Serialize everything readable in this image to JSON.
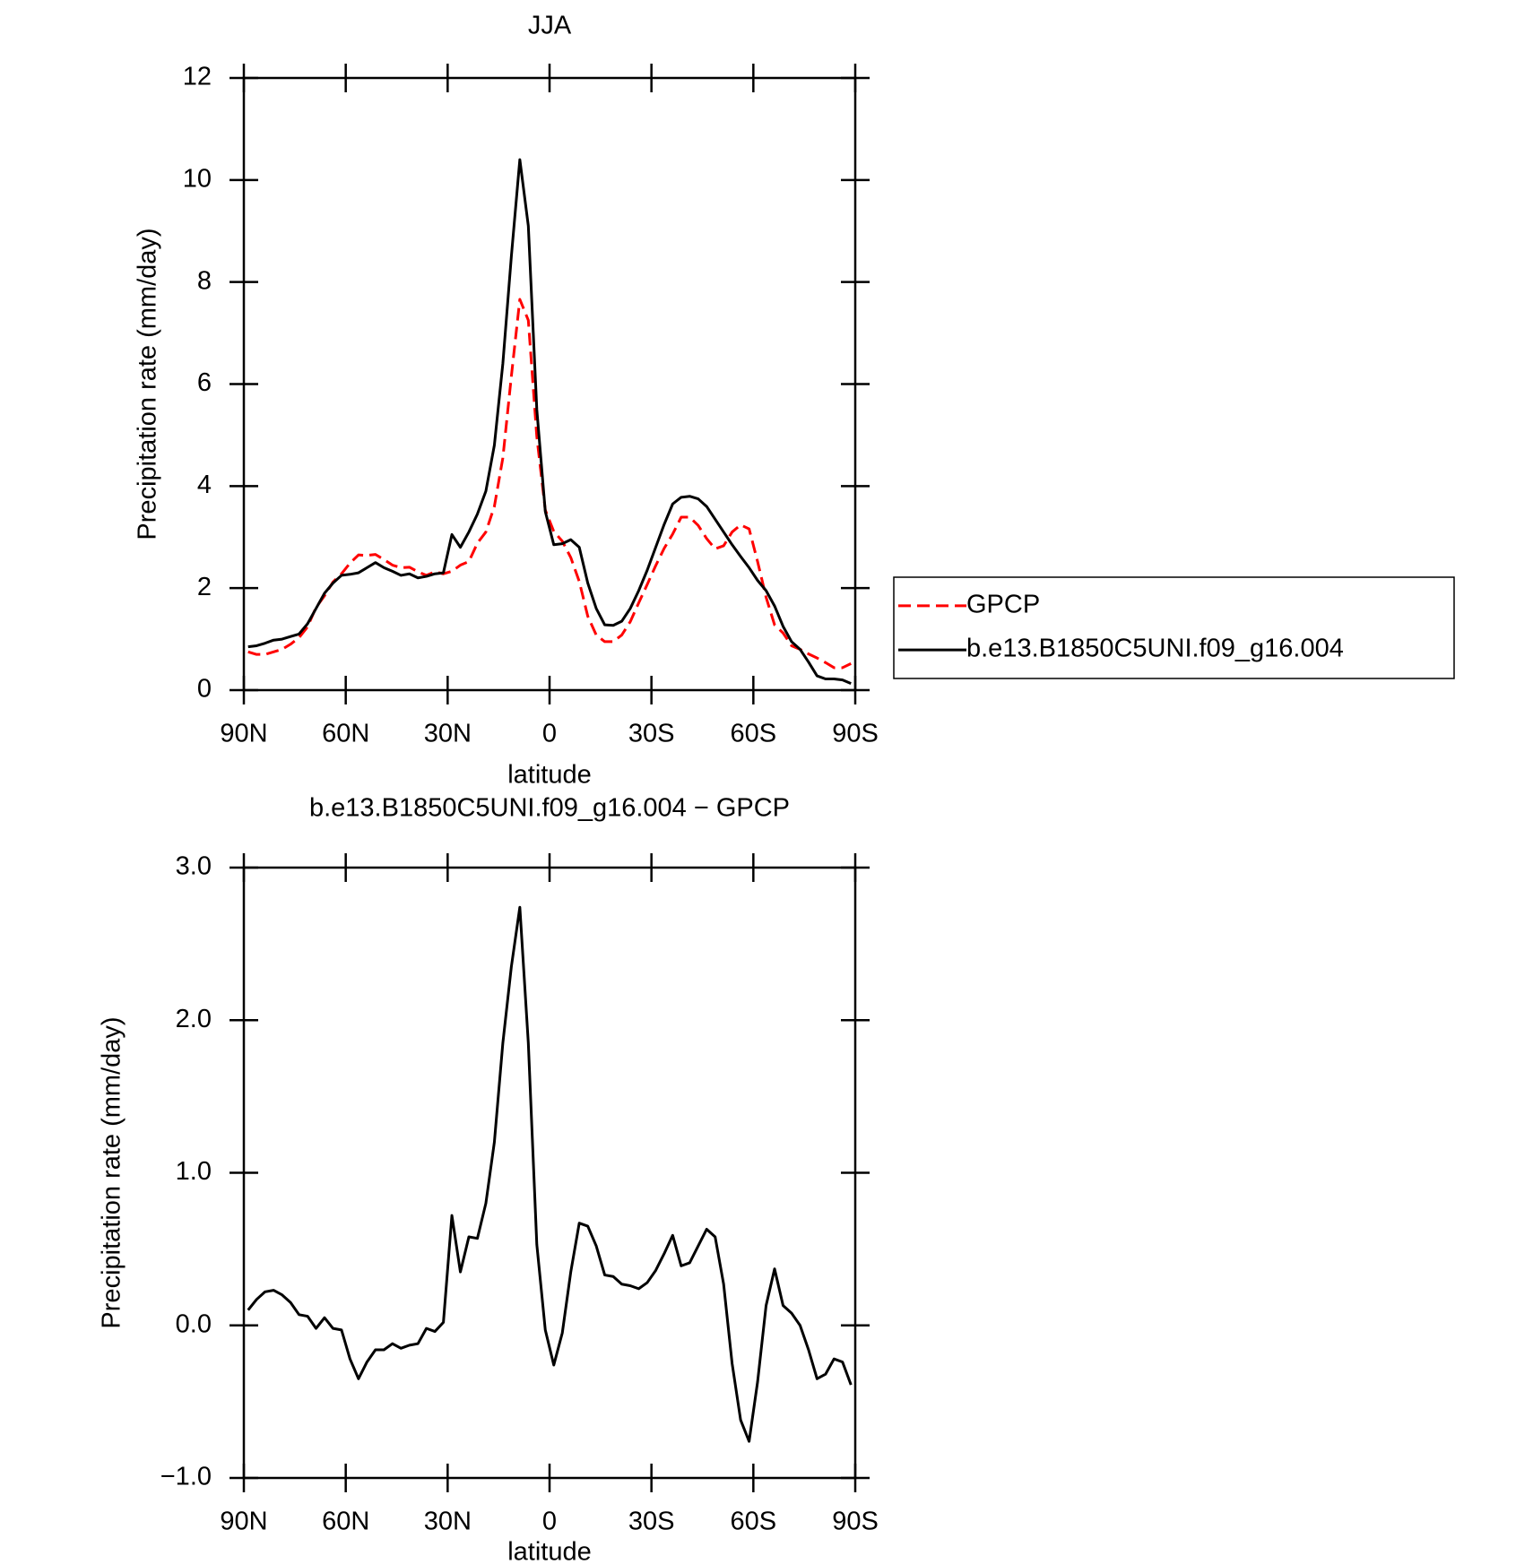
{
  "chart_data": [
    {
      "type": "line",
      "title": "JJA",
      "xlabel": "latitude",
      "ylabel": "Precipitation rate (mm/day)",
      "x": [
        88.75,
        86.25,
        83.75,
        81.25,
        78.75,
        76.25,
        73.75,
        71.25,
        68.75,
        66.25,
        63.75,
        61.25,
        58.75,
        56.25,
        53.75,
        51.25,
        48.75,
        46.25,
        43.75,
        41.25,
        38.75,
        36.25,
        33.75,
        31.25,
        28.75,
        26.25,
        23.75,
        21.25,
        18.75,
        16.25,
        13.75,
        11.25,
        8.75,
        6.25,
        3.75,
        1.25,
        -1.25,
        -3.75,
        -6.25,
        -8.75,
        -11.25,
        -13.75,
        -16.25,
        -18.75,
        -21.25,
        -23.75,
        -26.25,
        -28.75,
        -31.25,
        -33.75,
        -36.25,
        -38.75,
        -41.25,
        -43.75,
        -46.25,
        -48.75,
        -51.25,
        -53.75,
        -56.25,
        -58.75,
        -61.25,
        -63.75,
        -66.25,
        -68.75,
        -71.25,
        -73.75,
        -76.25,
        -78.75,
        -81.25,
        -83.75,
        -86.25,
        -88.75
      ],
      "series": [
        {
          "name": "GPCP",
          "color": "#ff0000",
          "line_style": "dashed",
          "values": [
            0.75,
            0.7,
            0.7,
            0.75,
            0.8,
            0.9,
            1.03,
            1.24,
            1.62,
            1.85,
            2.12,
            2.28,
            2.49,
            2.65,
            2.64,
            2.66,
            2.56,
            2.45,
            2.4,
            2.41,
            2.32,
            2.25,
            2.32,
            2.28,
            2.33,
            2.45,
            2.52,
            2.88,
            3.1,
            3.6,
            4.55,
            6.15,
            7.66,
            7.25,
            4.97,
            3.53,
            3.11,
            2.92,
            2.6,
            2.13,
            1.45,
            1.08,
            0.95,
            0.95,
            1.08,
            1.34,
            1.71,
            2.07,
            2.44,
            2.78,
            3.06,
            3.39,
            3.39,
            3.23,
            2.97,
            2.77,
            2.83,
            3.1,
            3.24,
            3.16,
            2.52,
            1.82,
            1.28,
            1.12,
            0.87,
            0.8,
            0.71,
            0.63,
            0.54,
            0.44,
            0.44,
            0.52
          ]
        },
        {
          "name": "b.e13.B1850C5UNI.f09_g16.004",
          "color": "#000000",
          "line_style": "solid",
          "values": [
            0.85,
            0.87,
            0.92,
            0.98,
            1.0,
            1.05,
            1.1,
            1.3,
            1.6,
            1.9,
            2.1,
            2.25,
            2.27,
            2.3,
            2.4,
            2.5,
            2.4,
            2.33,
            2.25,
            2.28,
            2.2,
            2.23,
            2.28,
            2.3,
            3.05,
            2.8,
            3.1,
            3.45,
            3.9,
            4.8,
            6.4,
            8.5,
            10.4,
            9.1,
            5.5,
            3.5,
            2.85,
            2.87,
            2.95,
            2.8,
            2.1,
            1.6,
            1.28,
            1.27,
            1.35,
            1.6,
            1.95,
            2.35,
            2.8,
            3.25,
            3.65,
            3.78,
            3.8,
            3.75,
            3.6,
            3.35,
            3.1,
            2.85,
            2.62,
            2.4,
            2.15,
            1.95,
            1.65,
            1.25,
            0.95,
            0.8,
            0.55,
            0.28,
            0.22,
            0.22,
            0.2,
            0.13
          ]
        }
      ],
      "xlim": [
        90,
        -90
      ],
      "xticks": [
        {
          "value": 90,
          "label": "90N"
        },
        {
          "value": 60,
          "label": "60N"
        },
        {
          "value": 30,
          "label": "30N"
        },
        0,
        {
          "value": -30,
          "label": "30S"
        },
        {
          "value": -60,
          "label": "60S"
        },
        {
          "value": -90,
          "label": "90S"
        }
      ],
      "ylim": [
        0,
        12
      ],
      "yticks": [
        0,
        2,
        4,
        6,
        8,
        10,
        12
      ],
      "legend": "right"
    },
    {
      "type": "line",
      "title": "b.e13.B1850C5UNI.f09_g16.004 − GPCP",
      "xlabel": "latitude",
      "ylabel": "Precipitation rate (mm/day)",
      "x": [
        88.75,
        86.25,
        83.75,
        81.25,
        78.75,
        76.25,
        73.75,
        71.25,
        68.75,
        66.25,
        63.75,
        61.25,
        58.75,
        56.25,
        53.75,
        51.25,
        48.75,
        46.25,
        43.75,
        41.25,
        38.75,
        36.25,
        33.75,
        31.25,
        28.75,
        26.25,
        23.75,
        21.25,
        18.75,
        16.25,
        13.75,
        11.25,
        8.75,
        6.25,
        3.75,
        1.25,
        -1.25,
        -3.75,
        -6.25,
        -8.75,
        -11.25,
        -13.75,
        -16.25,
        -18.75,
        -21.25,
        -23.75,
        -26.25,
        -28.75,
        -31.25,
        -33.75,
        -36.25,
        -38.75,
        -41.25,
        -43.75,
        -46.25,
        -48.75,
        -51.25,
        -53.75,
        -56.25,
        -58.75,
        -61.25,
        -63.75,
        -66.25,
        -68.75,
        -71.25,
        -73.75,
        -76.25,
        -78.75,
        -81.25,
        -83.75,
        -86.25,
        -88.75
      ],
      "series": [
        {
          "color": "#000000",
          "line_style": "solid",
          "values": [
            0.1,
            0.17,
            0.22,
            0.23,
            0.2,
            0.15,
            0.07,
            0.06,
            -0.02,
            0.05,
            -0.02,
            -0.03,
            -0.22,
            -0.35,
            -0.24,
            -0.16,
            -0.16,
            -0.12,
            -0.15,
            -0.13,
            -0.12,
            -0.02,
            -0.04,
            0.02,
            0.72,
            0.35,
            0.58,
            0.57,
            0.8,
            1.2,
            1.85,
            2.35,
            2.74,
            1.85,
            0.53,
            -0.03,
            -0.26,
            -0.05,
            0.35,
            0.67,
            0.65,
            0.52,
            0.33,
            0.32,
            0.27,
            0.26,
            0.24,
            0.28,
            0.36,
            0.47,
            0.59,
            0.39,
            0.41,
            0.52,
            0.63,
            0.58,
            0.27,
            -0.25,
            -0.62,
            -0.76,
            -0.37,
            0.13,
            0.37,
            0.13,
            0.08,
            0.0,
            -0.16,
            -0.35,
            -0.32,
            -0.22,
            -0.24,
            -0.39
          ]
        }
      ],
      "xlim": [
        90,
        -90
      ],
      "xticks": [
        {
          "value": 90,
          "label": "90N"
        },
        {
          "value": 60,
          "label": "60N"
        },
        {
          "value": 30,
          "label": "30N"
        },
        0,
        {
          "value": -30,
          "label": "30S"
        },
        {
          "value": -60,
          "label": "60S"
        },
        {
          "value": -90,
          "label": "90S"
        }
      ],
      "ylim": [
        -1,
        3
      ],
      "yticks": [
        {
          "value": -1,
          "label": "−1.0"
        },
        {
          "value": 0,
          "label": "0.0"
        },
        {
          "value": 1,
          "label": "1.0"
        },
        {
          "value": 2,
          "label": "2.0"
        },
        {
          "value": 3,
          "label": "3.0"
        }
      ]
    }
  ]
}
